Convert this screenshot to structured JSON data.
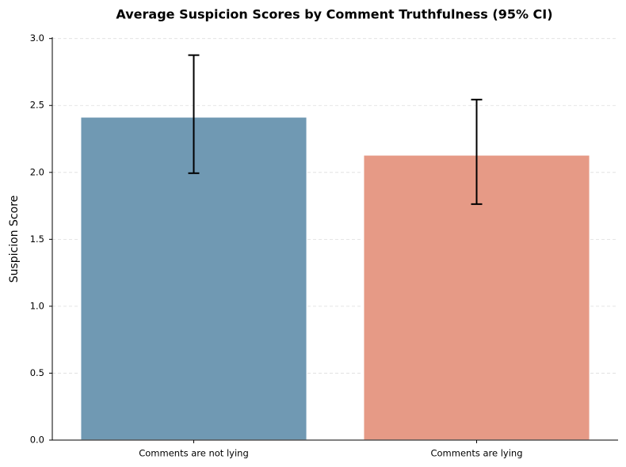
{
  "chart_data": {
    "type": "bar",
    "title": "Average Suspicion Scores by Comment Truthfulness (95% CI)",
    "y_label": "Suspicion Score",
    "categories": [
      "Comments are not lying",
      "Comments are lying"
    ],
    "values": [
      2.414,
      2.13
    ],
    "ci_low": [
      1.994,
      1.763
    ],
    "ci_high": [
      2.876,
      2.544
    ],
    "colors": [
      "#7099b3",
      "#e69a86"
    ],
    "ylim": [
      0,
      3.01
    ],
    "yticks": [
      {
        "value": 0,
        "label": "0.0"
      },
      0.5,
      {
        "value": 1,
        "label": "1.0"
      },
      1.5,
      {
        "value": 2,
        "label": "2.0"
      },
      2.5,
      {
        "value": 3,
        "label": "3.0"
      }
    ],
    "grid": true
  }
}
